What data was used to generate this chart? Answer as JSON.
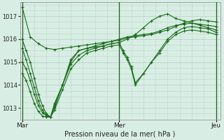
{
  "bg_color": "#d8eee4",
  "grid_color": "#b8d4c8",
  "line_color": "#1a6b1a",
  "marker_color": "#1a6b1a",
  "xlabel": "Pression niveau de la mer( hPa )",
  "ylim": [
    1012.5,
    1017.6
  ],
  "yticks": [
    1013,
    1014,
    1015,
    1016,
    1017
  ],
  "xtick_labels": [
    "Mar",
    "Mer",
    "Jeu"
  ],
  "xtick_positions": [
    0,
    24,
    48
  ],
  "vline_positions": [
    0,
    24,
    48
  ],
  "series": [
    {
      "x": [
        0,
        2,
        4,
        6,
        8,
        10,
        12,
        14,
        16,
        18,
        20,
        22,
        24,
        26,
        28,
        30,
        32,
        34,
        36,
        38,
        40,
        42,
        44,
        46,
        48
      ],
      "y": [
        1017.4,
        1016.1,
        1015.8,
        1015.6,
        1015.55,
        1015.6,
        1015.65,
        1015.7,
        1015.75,
        1015.8,
        1015.85,
        1015.9,
        1015.95,
        1016.05,
        1016.1,
        1016.15,
        1016.2,
        1016.3,
        1016.4,
        1016.55,
        1016.7,
        1016.8,
        1016.85,
        1016.8,
        1016.75
      ]
    },
    {
      "x": [
        0,
        1,
        2,
        3,
        4,
        5,
        6,
        7,
        8,
        10,
        12,
        14,
        16,
        18,
        20,
        22,
        24,
        26,
        28,
        30,
        32,
        34,
        36,
        38,
        40,
        42,
        44,
        46,
        48
      ],
      "y": [
        1016.0,
        1015.5,
        1015.0,
        1014.3,
        1013.6,
        1013.1,
        1012.75,
        1012.6,
        1013.2,
        1014.0,
        1015.0,
        1015.5,
        1015.6,
        1015.7,
        1015.8,
        1015.9,
        1016.0,
        1016.1,
        1016.15,
        1016.2,
        1016.25,
        1016.35,
        1016.5,
        1016.6,
        1016.65,
        1016.7,
        1016.65,
        1016.6,
        1016.55
      ]
    },
    {
      "x": [
        0,
        1,
        2,
        3,
        4,
        5,
        6,
        7,
        8,
        10,
        12,
        14,
        16,
        18,
        20,
        22,
        24,
        26,
        28,
        30,
        32,
        34,
        36,
        38,
        40,
        42,
        44,
        46,
        48
      ],
      "y": [
        1015.6,
        1015.1,
        1014.5,
        1013.9,
        1013.3,
        1012.9,
        1012.7,
        1012.6,
        1013.1,
        1014.0,
        1015.1,
        1015.5,
        1015.6,
        1015.65,
        1015.7,
        1015.8,
        1015.85,
        1016.0,
        1016.2,
        1016.5,
        1016.8,
        1017.0,
        1017.1,
        1016.9,
        1016.8,
        1016.7,
        1016.6,
        1016.5,
        1016.4
      ]
    },
    {
      "x": [
        0,
        1,
        2,
        3,
        4,
        5,
        6,
        7,
        8,
        10,
        12,
        14,
        16,
        18,
        20,
        22,
        24,
        25,
        26,
        27,
        28,
        30,
        32,
        34,
        36,
        38,
        40,
        42,
        44,
        46,
        48
      ],
      "y": [
        1015.0,
        1014.7,
        1014.2,
        1013.6,
        1013.1,
        1012.8,
        1012.65,
        1012.6,
        1013.0,
        1014.0,
        1014.9,
        1015.3,
        1015.5,
        1015.6,
        1015.7,
        1015.8,
        1015.85,
        1015.5,
        1015.2,
        1014.8,
        1014.1,
        1014.5,
        1015.0,
        1015.5,
        1016.0,
        1016.3,
        1016.5,
        1016.55,
        1016.5,
        1016.45,
        1016.3
      ]
    },
    {
      "x": [
        0,
        1,
        2,
        3,
        4,
        5,
        6,
        7,
        8,
        10,
        12,
        14,
        16,
        18,
        20,
        22,
        24,
        25,
        26,
        27,
        28,
        30,
        32,
        34,
        36,
        38,
        40,
        42,
        44,
        46,
        48
      ],
      "y": [
        1014.5,
        1014.2,
        1013.7,
        1013.2,
        1012.85,
        1012.65,
        1012.6,
        1012.6,
        1012.9,
        1013.8,
        1014.7,
        1015.1,
        1015.4,
        1015.5,
        1015.6,
        1015.7,
        1015.75,
        1015.4,
        1015.1,
        1014.7,
        1014.0,
        1014.5,
        1015.0,
        1015.4,
        1015.9,
        1016.2,
        1016.35,
        1016.4,
        1016.35,
        1016.3,
        1016.2
      ]
    }
  ]
}
